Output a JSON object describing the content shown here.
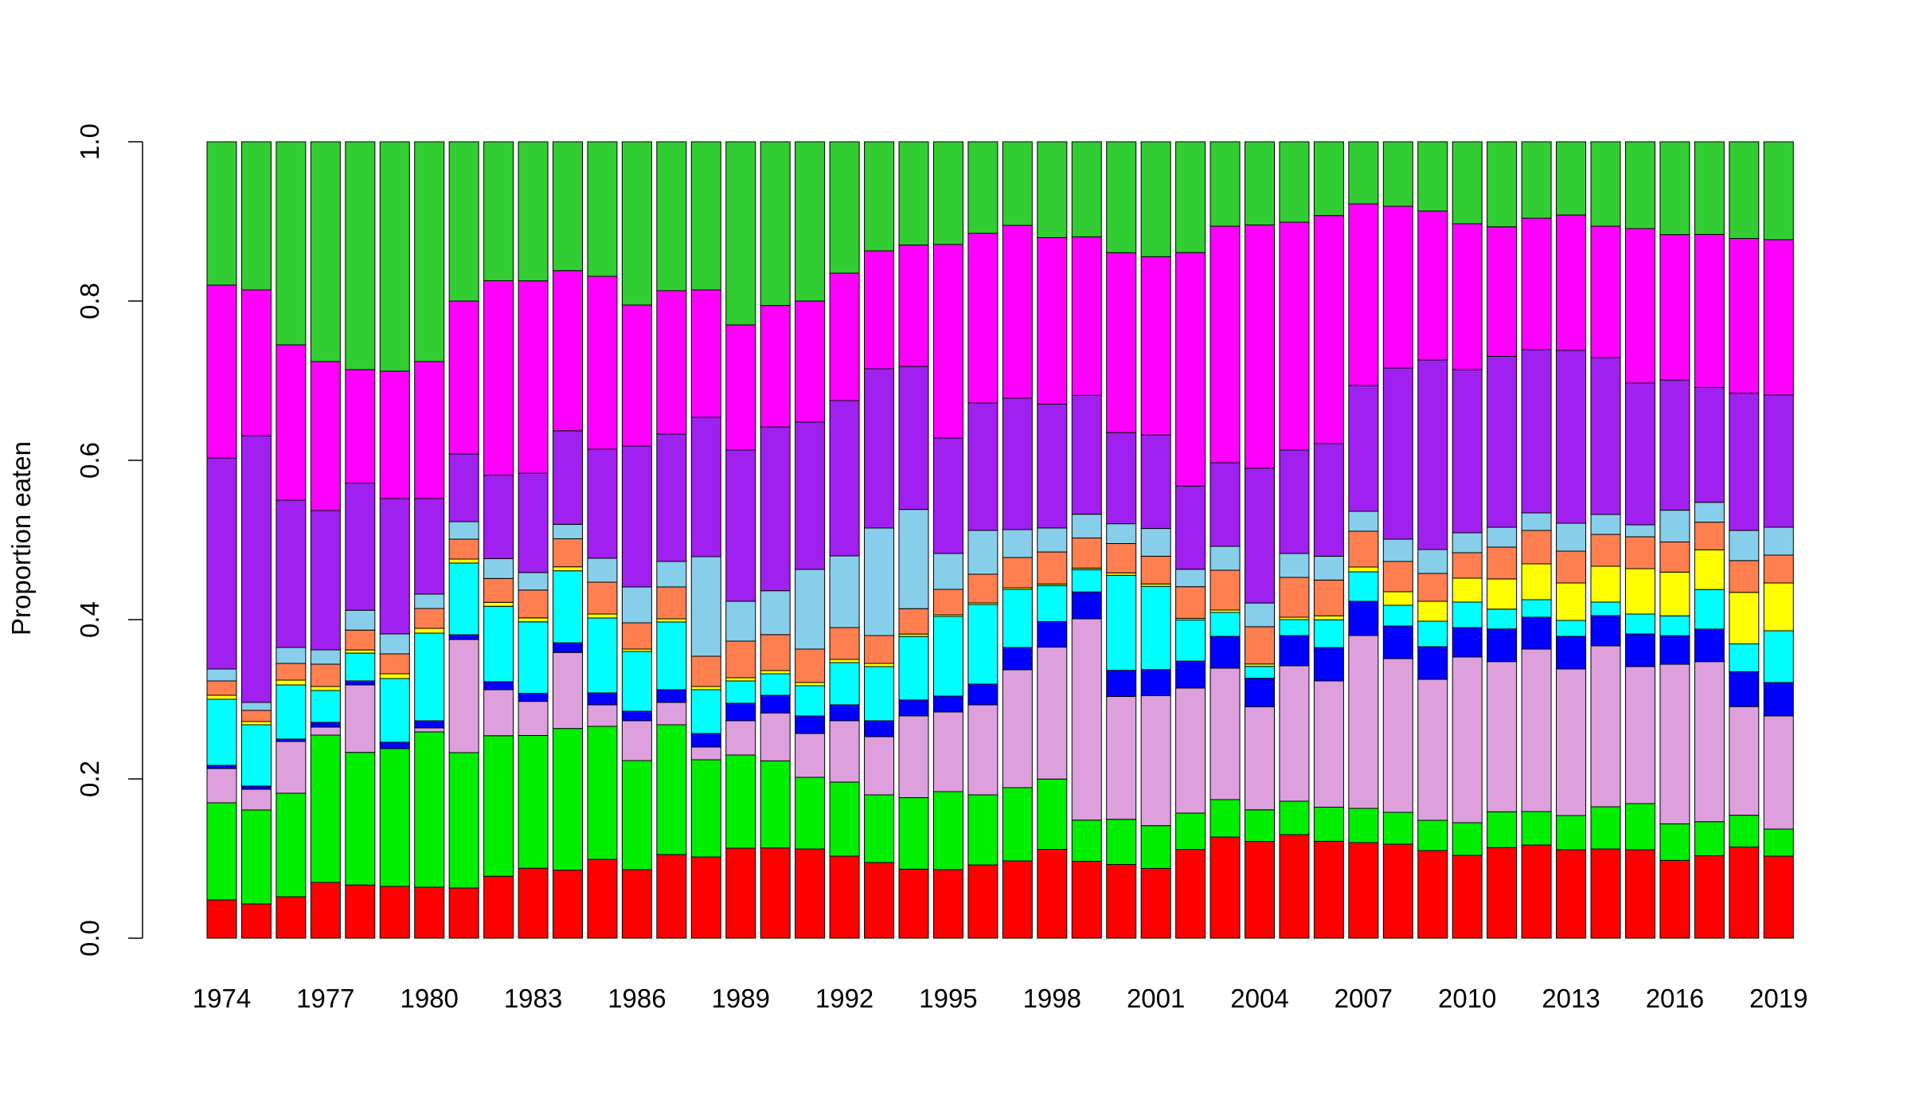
{
  "chart_data": {
    "type": "bar",
    "stacked": true,
    "title": "",
    "xlabel": "",
    "ylabel": "Proportion eaten",
    "ylim": [
      0,
      1
    ],
    "yticks": [
      "0.0",
      "0.2",
      "0.4",
      "0.6",
      "0.8",
      "1.0"
    ],
    "grid": false,
    "legend": "none",
    "categories": [
      1974,
      1975,
      1976,
      1977,
      1978,
      1979,
      1980,
      1981,
      1982,
      1983,
      1984,
      1985,
      1986,
      1987,
      1988,
      1989,
      1990,
      1991,
      1992,
      1993,
      1994,
      1995,
      1996,
      1997,
      1998,
      1999,
      2000,
      2001,
      2002,
      2003,
      2004,
      2005,
      2006,
      2007,
      2008,
      2009,
      2010,
      2011,
      2012,
      2013,
      2014,
      2015,
      2016,
      2017,
      2018,
      2019
    ],
    "xtick_labels": [
      "1974",
      "",
      "",
      "1977",
      "",
      "",
      "1980",
      "",
      "",
      "1983",
      "",
      "",
      "1986",
      "",
      "",
      "1989",
      "",
      "",
      "1992",
      "",
      "",
      "1995",
      "",
      "",
      "1998",
      "",
      "",
      "2001",
      "",
      "",
      "2004",
      "",
      "",
      "2007",
      "",
      "",
      "2010",
      "",
      "",
      "2013",
      "",
      "",
      "2016",
      "",
      "",
      "2019"
    ],
    "series": [
      {
        "color": "#ff0000",
        "values": [
          0.048,
          0.043,
          0.052,
          0.07,
          0.067,
          0.065,
          0.064,
          0.063,
          0.078,
          0.088,
          0.085,
          0.099,
          0.086,
          0.105,
          0.102,
          0.113,
          0.113,
          0.112,
          0.103,
          0.095,
          0.087,
          0.086,
          0.092,
          0.097,
          0.111,
          0.097,
          0.093,
          0.088,
          0.112,
          0.127,
          0.122,
          0.13,
          0.122,
          0.12,
          0.118,
          0.11,
          0.104,
          0.114,
          0.117,
          0.111,
          0.112,
          0.111,
          0.098,
          0.104,
          0.115,
          0.103
        ]
      },
      {
        "color": "#00ee00",
        "values": [
          0.122,
          0.118,
          0.13,
          0.185,
          0.167,
          0.173,
          0.195,
          0.17,
          0.177,
          0.167,
          0.177,
          0.167,
          0.137,
          0.163,
          0.122,
          0.117,
          0.109,
          0.09,
          0.093,
          0.085,
          0.09,
          0.098,
          0.088,
          0.092,
          0.088,
          0.052,
          0.057,
          0.054,
          0.046,
          0.047,
          0.04,
          0.042,
          0.043,
          0.043,
          0.04,
          0.038,
          0.041,
          0.045,
          0.042,
          0.043,
          0.053,
          0.058,
          0.046,
          0.043,
          0.04,
          0.034
        ]
      },
      {
        "color": "#dda0dd",
        "values": [
          0.043,
          0.026,
          0.065,
          0.01,
          0.085,
          0.0,
          0.005,
          0.142,
          0.058,
          0.043,
          0.095,
          0.027,
          0.05,
          0.028,
          0.016,
          0.043,
          0.06,
          0.055,
          0.077,
          0.073,
          0.103,
          0.1,
          0.113,
          0.148,
          0.165,
          0.254,
          0.155,
          0.164,
          0.158,
          0.165,
          0.13,
          0.17,
          0.159,
          0.217,
          0.193,
          0.177,
          0.208,
          0.189,
          0.204,
          0.184,
          0.202,
          0.172,
          0.201,
          0.202,
          0.137,
          0.142
        ]
      },
      {
        "color": "#0000ff",
        "values": [
          0.004,
          0.004,
          0.003,
          0.006,
          0.005,
          0.008,
          0.009,
          0.006,
          0.01,
          0.01,
          0.012,
          0.015,
          0.012,
          0.016,
          0.017,
          0.022,
          0.022,
          0.022,
          0.02,
          0.02,
          0.02,
          0.02,
          0.026,
          0.028,
          0.032,
          0.034,
          0.033,
          0.033,
          0.034,
          0.04,
          0.036,
          0.038,
          0.042,
          0.043,
          0.041,
          0.041,
          0.037,
          0.041,
          0.04,
          0.041,
          0.038,
          0.041,
          0.036,
          0.041,
          0.044,
          0.042
        ]
      },
      {
        "color": "#00ffff",
        "values": [
          0.083,
          0.077,
          0.068,
          0.04,
          0.035,
          0.08,
          0.11,
          0.09,
          0.095,
          0.09,
          0.09,
          0.094,
          0.075,
          0.085,
          0.055,
          0.028,
          0.027,
          0.038,
          0.053,
          0.068,
          0.08,
          0.1,
          0.1,
          0.073,
          0.045,
          0.028,
          0.12,
          0.105,
          0.052,
          0.03,
          0.015,
          0.02,
          0.035,
          0.037,
          0.026,
          0.032,
          0.032,
          0.025,
          0.022,
          0.02,
          0.017,
          0.025,
          0.025,
          0.05,
          0.035,
          0.065
        ]
      },
      {
        "color": "#ffff00",
        "values": [
          0.005,
          0.004,
          0.006,
          0.005,
          0.004,
          0.006,
          0.006,
          0.005,
          0.005,
          0.005,
          0.005,
          0.005,
          0.003,
          0.004,
          0.004,
          0.004,
          0.004,
          0.004,
          0.004,
          0.004,
          0.003,
          0.002,
          0.002,
          0.002,
          0.002,
          0.002,
          0.003,
          0.003,
          0.002,
          0.003,
          0.003,
          0.003,
          0.005,
          0.006,
          0.017,
          0.025,
          0.03,
          0.038,
          0.045,
          0.047,
          0.045,
          0.057,
          0.055,
          0.05,
          0.065,
          0.06
        ]
      },
      {
        "color": "#ff7f50",
        "values": [
          0.018,
          0.014,
          0.021,
          0.028,
          0.025,
          0.025,
          0.025,
          0.025,
          0.03,
          0.035,
          0.035,
          0.04,
          0.033,
          0.04,
          0.038,
          0.046,
          0.045,
          0.042,
          0.04,
          0.035,
          0.032,
          0.032,
          0.036,
          0.038,
          0.04,
          0.038,
          0.037,
          0.035,
          0.04,
          0.05,
          0.047,
          0.05,
          0.045,
          0.045,
          0.038,
          0.035,
          0.032,
          0.04,
          0.042,
          0.04,
          0.04,
          0.04,
          0.038,
          0.035,
          0.04,
          0.035
        ]
      },
      {
        "color": "#87ceeb",
        "values": [
          0.015,
          0.01,
          0.02,
          0.018,
          0.025,
          0.025,
          0.018,
          0.022,
          0.025,
          0.022,
          0.018,
          0.03,
          0.045,
          0.032,
          0.125,
          0.05,
          0.055,
          0.1,
          0.09,
          0.135,
          0.125,
          0.045,
          0.055,
          0.035,
          0.03,
          0.03,
          0.025,
          0.035,
          0.022,
          0.03,
          0.03,
          0.03,
          0.03,
          0.025,
          0.028,
          0.03,
          0.025,
          0.025,
          0.022,
          0.035,
          0.025,
          0.015,
          0.04,
          0.025,
          0.038,
          0.035
        ]
      },
      {
        "color": "#a020f0",
        "values": [
          0.265,
          0.335,
          0.185,
          0.175,
          0.16,
          0.17,
          0.12,
          0.085,
          0.105,
          0.125,
          0.117,
          0.137,
          0.177,
          0.16,
          0.175,
          0.19,
          0.205,
          0.185,
          0.195,
          0.2,
          0.18,
          0.145,
          0.16,
          0.165,
          0.155,
          0.15,
          0.115,
          0.118,
          0.105,
          0.105,
          0.17,
          0.13,
          0.142,
          0.158,
          0.215,
          0.238,
          0.205,
          0.215,
          0.205,
          0.217,
          0.197,
          0.178,
          0.164,
          0.145,
          0.173,
          0.166
        ]
      },
      {
        "color": "#ff00ff",
        "values": [
          0.217,
          0.183,
          0.195,
          0.187,
          0.143,
          0.16,
          0.172,
          0.192,
          0.245,
          0.242,
          0.2,
          0.217,
          0.177,
          0.18,
          0.16,
          0.157,
          0.152,
          0.152,
          0.16,
          0.148,
          0.153,
          0.243,
          0.213,
          0.217,
          0.208,
          0.2,
          0.227,
          0.225,
          0.295,
          0.297,
          0.307,
          0.286,
          0.287,
          0.228,
          0.203,
          0.187,
          0.183,
          0.163,
          0.165,
          0.17,
          0.165,
          0.194,
          0.183,
          0.193,
          0.195,
          0.195
        ]
      },
      {
        "color": "#32cd32",
        "values": [
          0.18,
          0.186,
          0.255,
          0.276,
          0.287,
          0.288,
          0.276,
          0.2,
          0.175,
          0.175,
          0.161,
          0.169,
          0.205,
          0.187,
          0.186,
          0.23,
          0.205,
          0.2,
          0.165,
          0.137,
          0.13,
          0.129,
          0.115,
          0.105,
          0.12,
          0.12,
          0.14,
          0.145,
          0.14,
          0.106,
          0.105,
          0.101,
          0.093,
          0.078,
          0.081,
          0.087,
          0.103,
          0.107,
          0.096,
          0.092,
          0.106,
          0.109,
          0.117,
          0.117,
          0.122,
          0.123
        ]
      }
    ]
  }
}
